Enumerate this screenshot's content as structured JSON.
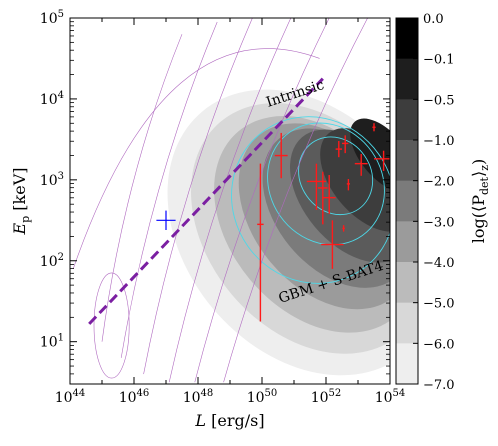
{
  "chart_data": {
    "type": "contour",
    "xlabel_main": "L",
    "xlabel_unit": " [erg/s]",
    "ylabel_main": "E",
    "ylabel_sub": "p",
    "ylabel_unit": " [keV]",
    "x_scale": "log",
    "y_scale": "log",
    "xlim": [
      1e+44,
      1e+54
    ],
    "ylim": [
      3,
      100000.0
    ],
    "x_ticks": [
      {
        "exp": 44,
        "base": "10",
        "sup": "44"
      },
      {
        "exp": 46,
        "base": "10",
        "sup": "46"
      },
      {
        "exp": 48,
        "base": "10",
        "sup": "48"
      },
      {
        "exp": 50,
        "base": "10",
        "sup": "50"
      },
      {
        "exp": 52,
        "base": "10",
        "sup": "52"
      },
      {
        "exp": 54,
        "base": "10",
        "sup": "54"
      }
    ],
    "y_ticks": [
      {
        "exp": 1,
        "base": "10",
        "sup": "1"
      },
      {
        "exp": 2,
        "base": "10",
        "sup": "2"
      },
      {
        "exp": 3,
        "base": "10",
        "sup": "3"
      },
      {
        "exp": 4,
        "base": "10",
        "sup": "4"
      },
      {
        "exp": 5,
        "base": "10",
        "sup": "5"
      }
    ],
    "annotations": [
      {
        "text": "Intrinsic",
        "color": "#7b1fa2",
        "x_log": 46.5,
        "y_log": 3.95,
        "angle": -18
      },
      {
        "text": "GBM + S-BAT4",
        "color": "#29d6e6",
        "x_log": 51.2,
        "y_log": 1.6,
        "angle": -18
      }
    ],
    "colorbar": {
      "label_prefix": "log(⟨P",
      "label_sub": "det",
      "label_suffix": "⟩",
      "label_sub2": "z",
      "label_close": ")",
      "levels": [
        0.0,
        -0.1,
        -0.5,
        -1.0,
        -2.0,
        -3.0,
        -4.0,
        -5.0,
        -6.0,
        -7.0
      ],
      "tick_labels": [
        "0.0",
        "−0.1",
        "−0.5",
        "−1.0",
        "−2.0",
        "−3.0",
        "−4.0",
        "−5.0",
        "−6.0",
        "−7.0"
      ],
      "colors": [
        "#000000",
        "#1e1e1e",
        "#3d3d3d",
        "#5b5b5b",
        "#7b7b7b",
        "#9b9b9b",
        "#bbbbbb",
        "#d8d8d8",
        "#eeeeee"
      ]
    },
    "detection_bands": [
      {
        "color": "#eeeeee",
        "center": [
          51.3,
          2.35
        ],
        "rx": 3.7,
        "ry": 1.95,
        "rot": 40
      },
      {
        "color": "#d8d8d8",
        "center": [
          51.5,
          2.4
        ],
        "rx": 3.2,
        "ry": 1.72,
        "rot": 40
      },
      {
        "color": "#bbbbbb",
        "center": [
          51.7,
          2.45
        ],
        "rx": 2.7,
        "ry": 1.5,
        "rot": 40
      },
      {
        "color": "#9b9b9b",
        "center": [
          52.0,
          2.55
        ],
        "rx": 2.25,
        "ry": 1.3,
        "rot": 40
      },
      {
        "color": "#7b7b7b",
        "center": [
          52.35,
          2.65
        ],
        "rx": 1.9,
        "ry": 1.12,
        "rot": 40
      },
      {
        "color": "#5b5b5b",
        "center": [
          52.8,
          2.8
        ],
        "rx": 1.5,
        "ry": 0.95,
        "rot": 40
      },
      {
        "color": "#3d3d3d",
        "center": [
          53.3,
          3.0
        ],
        "rx": 1.1,
        "ry": 0.75,
        "rot": 40
      },
      {
        "color": "#1e1e1e",
        "center": [
          53.8,
          3.3
        ],
        "rx": 0.7,
        "ry": 0.55,
        "rot": 40
      }
    ],
    "intrinsic_trend": {
      "x": [
        44.6,
        51.9
      ],
      "y": [
        1.22,
        4.25
      ],
      "color": "#7b1fa2"
    },
    "intrinsic_contours": [
      {
        "x": [
          45.0,
          47.5
        ],
        "y": [
          1.0,
          4.8
        ]
      },
      {
        "x": [
          45.6,
          48.6
        ],
        "y": [
          0.8,
          4.95
        ]
      },
      {
        "x": [
          46.3,
          49.7
        ],
        "y": [
          0.6,
          5.0
        ]
      },
      {
        "x": [
          47.1,
          50.9
        ],
        "y": [
          0.5,
          5.0
        ]
      },
      {
        "x": [
          47.9,
          52.1
        ],
        "y": [
          0.5,
          5.0
        ]
      },
      {
        "x": [
          48.8,
          53.3
        ],
        "y": [
          0.5,
          5.0
        ]
      }
    ],
    "observed_contours": [
      {
        "center": [
          51.6,
          2.75
        ],
        "rx": 2.5,
        "ry": 1.05
      },
      {
        "center": [
          52.0,
          2.95
        ],
        "rx": 1.75,
        "ry": 0.78
      },
      {
        "center": [
          52.3,
          3.05
        ],
        "rx": 1.1,
        "ry": 0.5
      }
    ],
    "blue_point": {
      "x": 47.0,
      "y": 2.5,
      "xerr": 0.3,
      "yerr": 0.12,
      "color": "#0000ff"
    },
    "red_points": [
      {
        "x": 49.95,
        "y": 2.45,
        "xerr": 0.1,
        "yerr_lo": 1.2,
        "yerr_hi": 0.75
      },
      {
        "x": 50.6,
        "y": 3.3,
        "xerr": 0.2,
        "yerr_lo": 0.28,
        "yerr_hi": 0.28
      },
      {
        "x": 51.7,
        "y": 2.98,
        "xerr": 0.3,
        "yerr_lo": 0.35,
        "yerr_hi": 0.22
      },
      {
        "x": 51.9,
        "y": 2.9,
        "xerr": 0.15,
        "yerr_lo": 0.45,
        "yerr_hi": 0.2
      },
      {
        "x": 52.1,
        "y": 2.78,
        "xerr": 0.2,
        "yerr_lo": 0.2,
        "yerr_hi": 0.28
      },
      {
        "x": 52.2,
        "y": 2.2,
        "xerr": 0.35,
        "yerr_lo": 0.3,
        "yerr_hi": 0.3
      },
      {
        "x": 52.4,
        "y": 3.38,
        "xerr": 0.1,
        "yerr_lo": 0.1,
        "yerr_hi": 0.1
      },
      {
        "x": 52.6,
        "y": 3.45,
        "xerr": 0.1,
        "yerr_lo": 0.12,
        "yerr_hi": 0.1
      },
      {
        "x": 52.7,
        "y": 2.95,
        "xerr": 0.05,
        "yerr_lo": 0.08,
        "yerr_hi": 0.06
      },
      {
        "x": 53.1,
        "y": 3.2,
        "xerr": 0.2,
        "yerr_lo": 0.15,
        "yerr_hi": 0.12
      },
      {
        "x": 53.5,
        "y": 3.65,
        "xerr": 0.05,
        "yerr_lo": 0.05,
        "yerr_hi": 0.05
      },
      {
        "x": 53.8,
        "y": 3.26,
        "xerr": 0.3,
        "yerr_lo": 0.15,
        "yerr_hi": 0.1
      },
      {
        "x": 52.55,
        "y": 2.4,
        "xerr": 0.04,
        "yerr_lo": 0.04,
        "yerr_hi": 0.04
      }
    ]
  }
}
